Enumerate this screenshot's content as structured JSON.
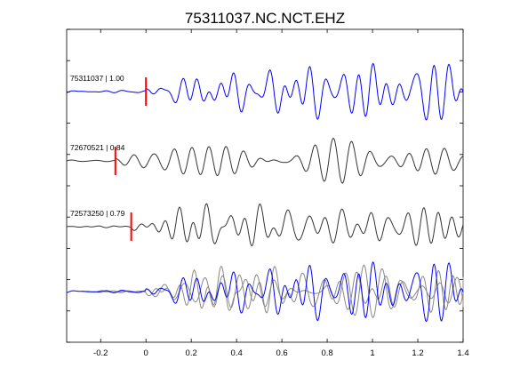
{
  "chart_data": {
    "type": "line",
    "title": "75311037.NC.NCT.EHZ",
    "xlabel": "",
    "ylabel": "",
    "xlim": [
      -0.35,
      1.4
    ],
    "xticks": [
      -0.2,
      0,
      0.2,
      0.4,
      0.6,
      0.8,
      1,
      1.2,
      1.4
    ],
    "xtick_labels": [
      "-0.2",
      "0",
      "0.2",
      "0.4",
      "0.6",
      "0.8",
      "1",
      "1.2",
      "1.4"
    ],
    "grid": false,
    "legend": "none",
    "colors": {
      "reference": "#0000ff",
      "other": "#333333",
      "overlay_other": "#888888",
      "pick": "#ff0000",
      "axes": "#000000"
    },
    "traces": [
      {
        "label": "75311037 | 1.00",
        "event_id": "75311037",
        "correlation": 1.0,
        "pick_time": 0.0,
        "color": "#0000ff",
        "amp_scale": 1.0,
        "seed": 1
      },
      {
        "label": "72670521 | 0.84",
        "event_id": "72670521",
        "correlation": 0.84,
        "pick_time": -0.135,
        "color": "#333333",
        "amp_scale": 0.9,
        "seed": 2
      },
      {
        "label": "72573250 | 0.79",
        "event_id": "72573250",
        "correlation": 0.79,
        "pick_time": -0.065,
        "color": "#333333",
        "amp_scale": 0.95,
        "seed": 3
      }
    ],
    "overlay": {
      "description": "aligned stack of all traces",
      "series": [
        {
          "ref": "72670521 | 0.84",
          "color": "#888888"
        },
        {
          "ref": "72573250 | 0.79",
          "color": "#888888"
        },
        {
          "ref": "75311037 | 1.00",
          "color": "#0000ff"
        }
      ]
    }
  }
}
